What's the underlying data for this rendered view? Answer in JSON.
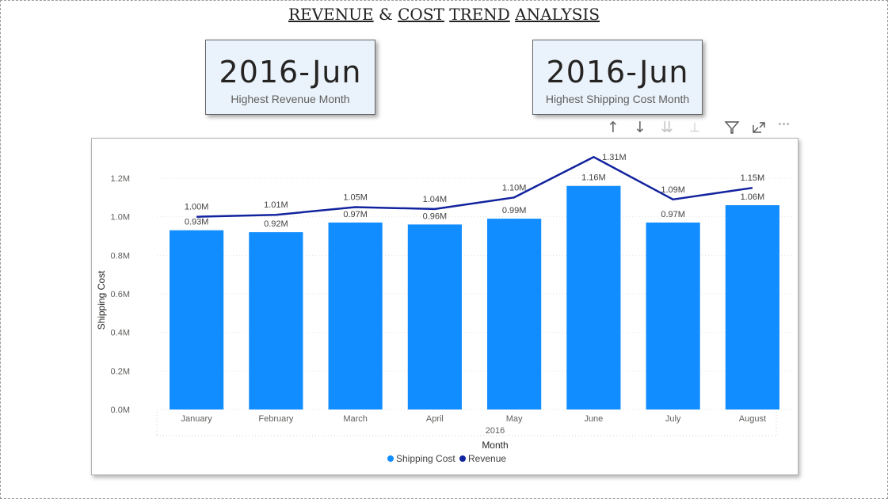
{
  "page": {
    "title_words": [
      "REVENUE",
      "&",
      "COST",
      "TREND",
      "ANALYSIS"
    ]
  },
  "cards": [
    {
      "value": "2016-Jun",
      "label": "Highest Revenue Month"
    },
    {
      "value": "2016-Jun",
      "label": "Highest Shipping Cost Month"
    }
  ],
  "toolbar": {
    "icons": [
      "arrow-up-icon",
      "arrow-down-icon",
      "drill-down-icon",
      "expand-hierarchy-icon",
      "filter-icon",
      "focus-mode-icon",
      "more-options-icon"
    ]
  },
  "chart_data": {
    "type": "bar",
    "categories": [
      "January",
      "February",
      "March",
      "April",
      "May",
      "June",
      "July",
      "August"
    ],
    "x_group_label": "2016",
    "series": [
      {
        "name": "Shipping Cost",
        "kind": "bar",
        "color": "#118dff",
        "values": [
          0.93,
          0.92,
          0.97,
          0.96,
          0.99,
          1.16,
          0.97,
          1.06
        ],
        "labels": [
          "0.93M",
          "0.92M",
          "0.97M",
          "0.96M",
          "0.99M",
          "1.16M",
          "0.97M",
          "1.06M"
        ]
      },
      {
        "name": "Revenue",
        "kind": "line",
        "color": "#12239e",
        "values": [
          1.0,
          1.01,
          1.05,
          1.04,
          1.1,
          1.31,
          1.09,
          1.15
        ],
        "labels": [
          "1.00M",
          "1.01M",
          "1.05M",
          "1.04M",
          "1.10M",
          "1.31M",
          "1.09M",
          "1.15M"
        ]
      }
    ],
    "xlabel": "Month",
    "ylabel": "Shipping Cost",
    "ylim": [
      0,
      1.2
    ],
    "yticks": [
      0,
      0.2,
      0.4,
      0.6,
      0.8,
      1.0,
      1.2
    ],
    "ytick_labels": [
      "0.0M",
      "0.2M",
      "0.4M",
      "0.6M",
      "0.8M",
      "1.0M",
      "1.2M"
    ],
    "grid": true,
    "legend_position": "bottom-center"
  }
}
